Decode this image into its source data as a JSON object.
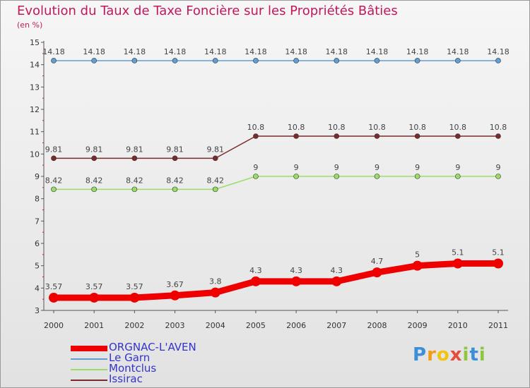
{
  "header": {
    "title": "Evolution du Taux de Taxe Foncière sur les Propriétés Bâties",
    "unit": "(en %)"
  },
  "logo": {
    "letters": [
      "P",
      "r",
      "o",
      "x",
      "i",
      "t",
      "i"
    ],
    "colors": [
      "#3a8fd8",
      "#f39c12",
      "#f1c40f",
      "#e74c3c",
      "#8dc63f",
      "#3a8fd8",
      "#8dc63f"
    ]
  },
  "chart_data": {
    "type": "line",
    "title": "Evolution du Taux de Taxe Foncière sur les Propriétés Bâties",
    "ylabel": "(en %)",
    "xlabel": "",
    "x": [
      "2000",
      "2001",
      "2002",
      "2003",
      "2004",
      "2005",
      "2006",
      "2007",
      "2008",
      "2009",
      "2010",
      "2011"
    ],
    "ylim": [
      3,
      15
    ],
    "yticks": [
      "3",
      "4",
      "5",
      "6",
      "7",
      "8",
      "9",
      "10",
      "11",
      "12",
      "13",
      "14",
      "15"
    ],
    "grid": false,
    "legend_position": "bottom-left",
    "series": [
      {
        "name": "ORGNAC-L'AVEN",
        "color": "#ee0000",
        "values": [
          3.57,
          3.57,
          3.57,
          3.67,
          3.8,
          4.3,
          4.3,
          4.3,
          4.7,
          5,
          5.1,
          5.1
        ],
        "labels": [
          "3.57",
          "3.57",
          "3.57",
          "3.67",
          "3.8",
          "4.3",
          "4.3",
          "4.3",
          "4.7",
          "5",
          "5.1",
          "5.1"
        ]
      },
      {
        "name": "Le Garn",
        "color": "#5f9fd6",
        "values": [
          14.18,
          14.18,
          14.18,
          14.18,
          14.18,
          14.18,
          14.18,
          14.18,
          14.18,
          14.18,
          14.18,
          14.18
        ],
        "labels": [
          "14.18",
          "14.18",
          "14.18",
          "14.18",
          "14.18",
          "14.18",
          "14.18",
          "14.18",
          "14.18",
          "14.18",
          "14.18",
          "14.18"
        ]
      },
      {
        "name": "Montclus",
        "color": "#99dd66",
        "values": [
          8.42,
          8.42,
          8.42,
          8.42,
          8.42,
          9,
          9,
          9,
          9,
          9,
          9,
          9
        ],
        "labels": [
          "8.42",
          "8.42",
          "8.42",
          "8.42",
          "8.42",
          "9",
          "9",
          "9",
          "9",
          "9",
          "9",
          "9"
        ]
      },
      {
        "name": "Issirac",
        "color": "#7a2a2a",
        "values": [
          9.81,
          9.81,
          9.81,
          9.81,
          9.81,
          10.8,
          10.8,
          10.8,
          10.8,
          10.8,
          10.8,
          10.8
        ],
        "labels": [
          "9.81",
          "9.81",
          "9.81",
          "9.81",
          "9.81",
          "10.8",
          "10.8",
          "10.8",
          "10.8",
          "10.8",
          "10.8",
          "10.8"
        ]
      }
    ]
  }
}
